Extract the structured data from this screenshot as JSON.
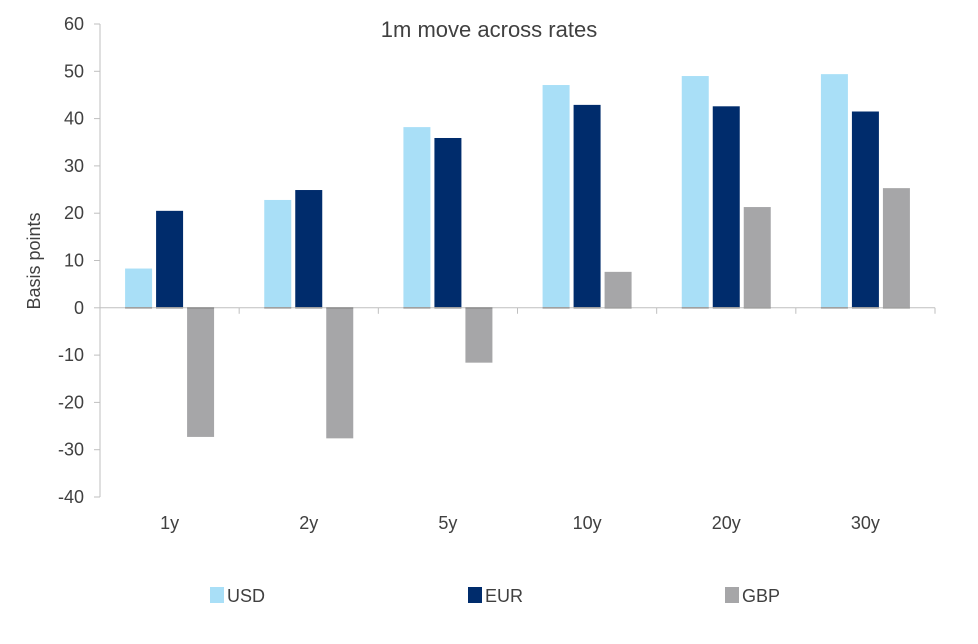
{
  "chart_data": {
    "type": "bar",
    "title": "1m move across rates",
    "xlabel": "",
    "ylabel": "Basis points",
    "categories": [
      "1y",
      "2y",
      "5y",
      "10y",
      "20y",
      "30y"
    ],
    "series": [
      {
        "name": "USD",
        "color": "#a9dff7",
        "values": [
          8.3,
          22.8,
          38.2,
          47.1,
          49.0,
          49.4
        ]
      },
      {
        "name": "EUR",
        "color": "#002c6c",
        "values": [
          20.5,
          24.9,
          35.9,
          42.9,
          42.6,
          41.5
        ]
      },
      {
        "name": "GBP",
        "color": "#a6a6a8",
        "values": [
          -27.3,
          -27.6,
          -11.6,
          7.6,
          21.3,
          25.3
        ]
      }
    ],
    "ylim": [
      -40,
      60
    ],
    "yticks": [
      60,
      50,
      40,
      30,
      20,
      10,
      0,
      -10,
      -20,
      -30,
      -40
    ],
    "ytick_labels": [
      "60",
      "50",
      "40",
      "30",
      "20",
      "10",
      "0",
      "-10",
      "-20",
      "-30",
      "-40"
    ],
    "grid": false,
    "legend_position": "bottom"
  }
}
